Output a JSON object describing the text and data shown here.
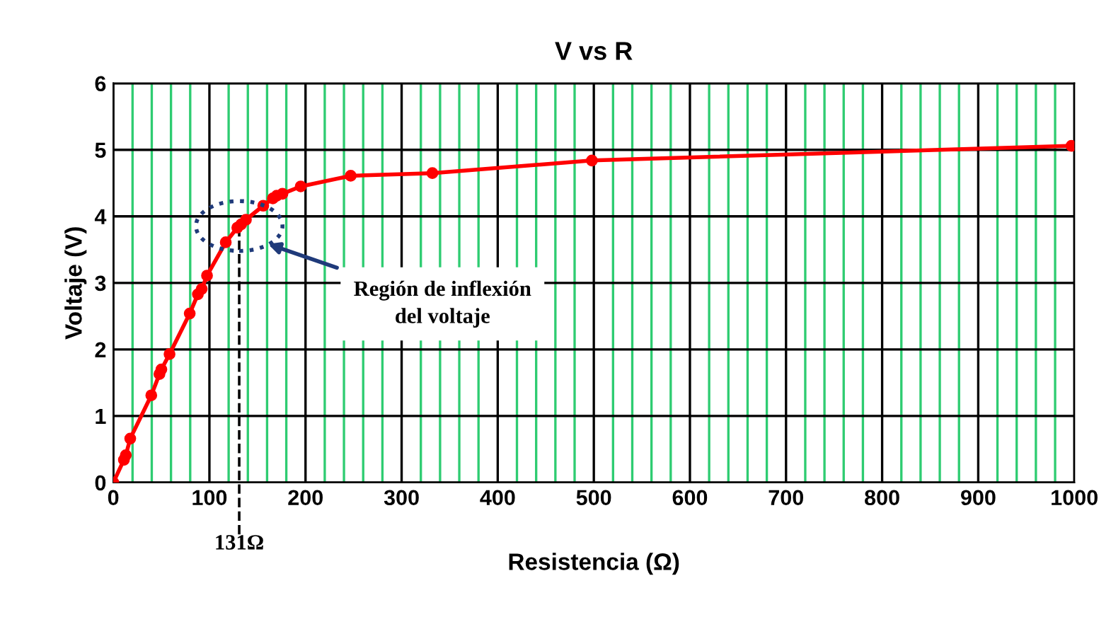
{
  "chart_data": {
    "type": "line",
    "title": "V vs R",
    "xlabel": "Resistencia (Ω)",
    "ylabel": "Voltaje (V)",
    "x": [
      0,
      11,
      13,
      17.6,
      39.5,
      48,
      50,
      58.5,
      79.5,
      88,
      92,
      97.5,
      117,
      129,
      133,
      138,
      156,
      166,
      170,
      176,
      195,
      247,
      332,
      498,
      997
    ],
    "series": [
      {
        "color": "#ff0000",
        "values": [
          0,
          0.34,
          0.41,
          0.66,
          1.31,
          1.63,
          1.7,
          1.93,
          2.54,
          2.83,
          2.91,
          3.11,
          3.61,
          3.83,
          3.88,
          3.95,
          4.16,
          4.27,
          4.31,
          4.34,
          4.45,
          4.61,
          4.65,
          4.84,
          5.06
        ]
      }
    ],
    "marker": "circle",
    "line_style": "solid",
    "grid": true,
    "legend": false,
    "xlim": [
      0,
      1000
    ],
    "ylim": [
      0,
      6
    ],
    "xticks": [
      0,
      {
        "value": 20,
        "label": null
      },
      {
        "value": 40,
        "label": null
      },
      {
        "value": 60,
        "label": null
      },
      {
        "value": 80,
        "label": null
      },
      100,
      {
        "value": 120,
        "label": null
      },
      {
        "value": 140,
        "label": null
      },
      {
        "value": 160,
        "label": null
      },
      {
        "value": 180,
        "label": null
      },
      200,
      {
        "value": 220,
        "label": null
      },
      {
        "value": 240,
        "label": null
      },
      {
        "value": 260,
        "label": null
      },
      {
        "value": 280,
        "label": null
      },
      300,
      {
        "value": 320,
        "label": null
      },
      {
        "value": 340,
        "label": null
      },
      {
        "value": 360,
        "label": null
      },
      {
        "value": 380,
        "label": null
      },
      400,
      {
        "value": 420,
        "label": null
      },
      {
        "value": 440,
        "label": null
      },
      {
        "value": 460,
        "label": null
      },
      {
        "value": 480,
        "label": null
      },
      500,
      {
        "value": 520,
        "label": null
      },
      {
        "value": 540,
        "label": null
      },
      {
        "value": 560,
        "label": null
      },
      {
        "value": 580,
        "label": null
      },
      600,
      {
        "value": 620,
        "label": null
      },
      {
        "value": 640,
        "label": null
      },
      {
        "value": 660,
        "label": null
      },
      {
        "value": 680,
        "label": null
      },
      700,
      {
        "value": 720,
        "label": null
      },
      {
        "value": 740,
        "label": null
      },
      {
        "value": 760,
        "label": null
      },
      {
        "value": 780,
        "label": null
      },
      800,
      {
        "value": 820,
        "label": null
      },
      {
        "value": 840,
        "label": null
      },
      {
        "value": 860,
        "label": null
      },
      {
        "value": 880,
        "label": null
      },
      900,
      {
        "value": 920,
        "label": null
      },
      {
        "value": 940,
        "label": null
      },
      {
        "value": 960,
        "label": null
      },
      {
        "value": 980,
        "label": null
      },
      1000
    ],
    "yticks": [
      0,
      1,
      2,
      3,
      4,
      5,
      6
    ],
    "ref_lines": [
      {
        "axis": "x",
        "value": 131,
        "label": "131Ω",
        "color": "#000000",
        "line_style": "dashed"
      }
    ],
    "annotations": [
      "Región de inflexión\ndel voltaje"
    ]
  }
}
